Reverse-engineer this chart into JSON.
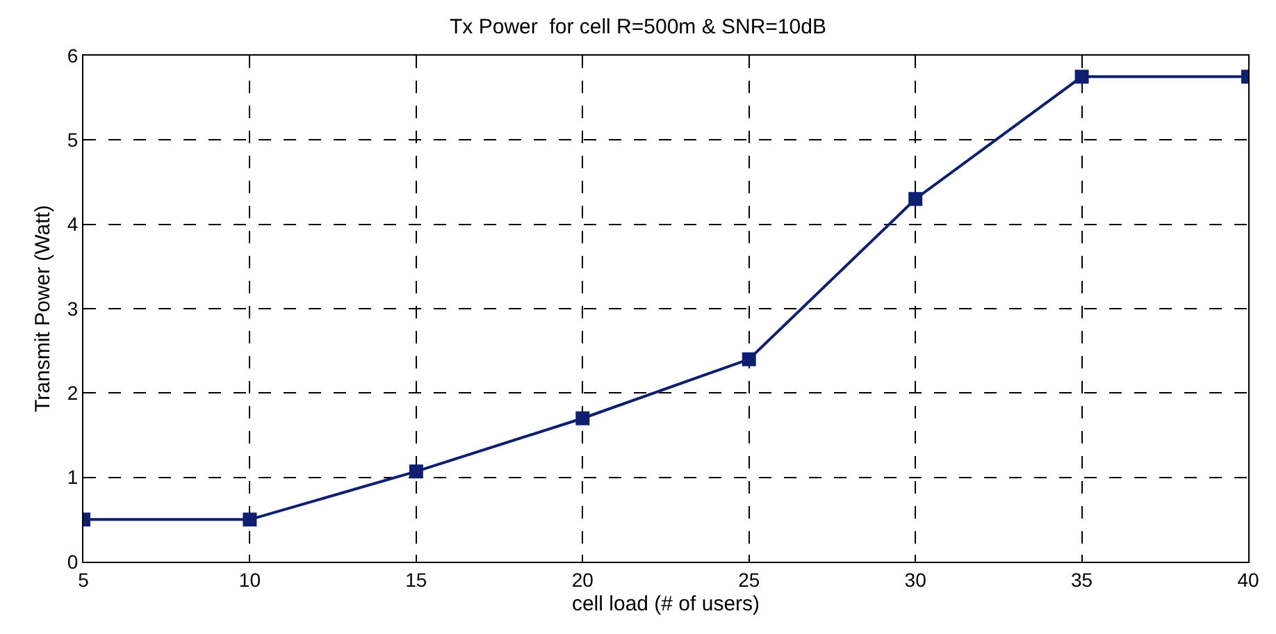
{
  "chart_data": {
    "type": "line",
    "title": "Tx Power  for cell R=500m & SNR=10dB",
    "xlabel": "cell load (# of users)",
    "ylabel": "Transmit Power (Watt)",
    "x": [
      5,
      10,
      15,
      20,
      25,
      30,
      35,
      40
    ],
    "series": [
      {
        "color": "#0d1f6e",
        "values": [
          0.5,
          0.5,
          1.07,
          1.7,
          2.4,
          4.3,
          5.75,
          5.75
        ]
      }
    ],
    "xlim": [
      5,
      40
    ],
    "xticks": [
      5,
      10,
      15,
      20,
      25,
      30,
      35,
      40
    ],
    "ylim": [
      0,
      6
    ],
    "yticks": [
      0,
      1,
      2,
      3,
      4,
      5,
      6
    ],
    "grid": true,
    "marker": "square",
    "line_style": "solid",
    "legend": false
  }
}
